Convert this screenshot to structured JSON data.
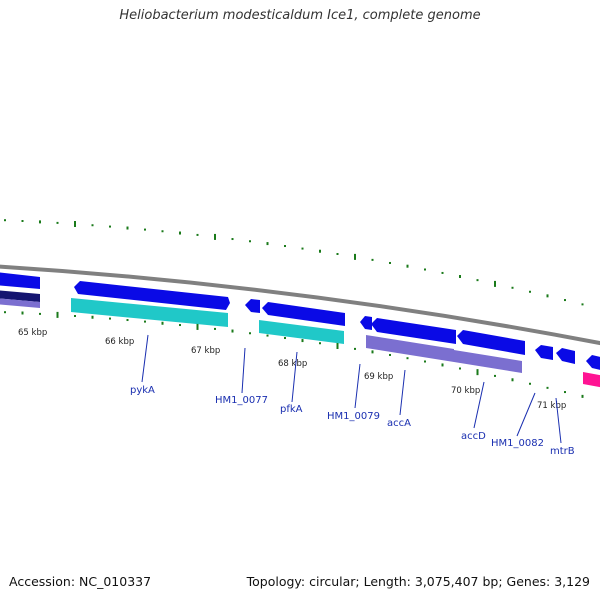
{
  "title": "Heliobacterium modesticaldum Ice1, complete genome",
  "footer": {
    "accession": "Accession: NC_010337",
    "summary": "Topology: circular; Length: 3,075,407 bp; Genes: 3,129"
  },
  "colors": {
    "backbone": "#808080",
    "forward_gene": "#0a0ae6",
    "cds_teal": "#20c8c8",
    "cds_purple": "#7b6fd0",
    "cds_navy": "#141470",
    "rna_pink": "#ff1493",
    "gc_tick": "#1a7a1a",
    "label_blue": "#1a2fb0"
  },
  "kbp_ticks": [
    "65 kbp",
    "66 kbp",
    "67 kbp",
    "68 kbp",
    "69 kbp",
    "70 kbp",
    "71 kbp"
  ],
  "gene_labels": [
    "pykA",
    "HM1_0077",
    "pfkA",
    "HM1_0079",
    "accA",
    "accD",
    "HM1_0082",
    "mtrB"
  ]
}
